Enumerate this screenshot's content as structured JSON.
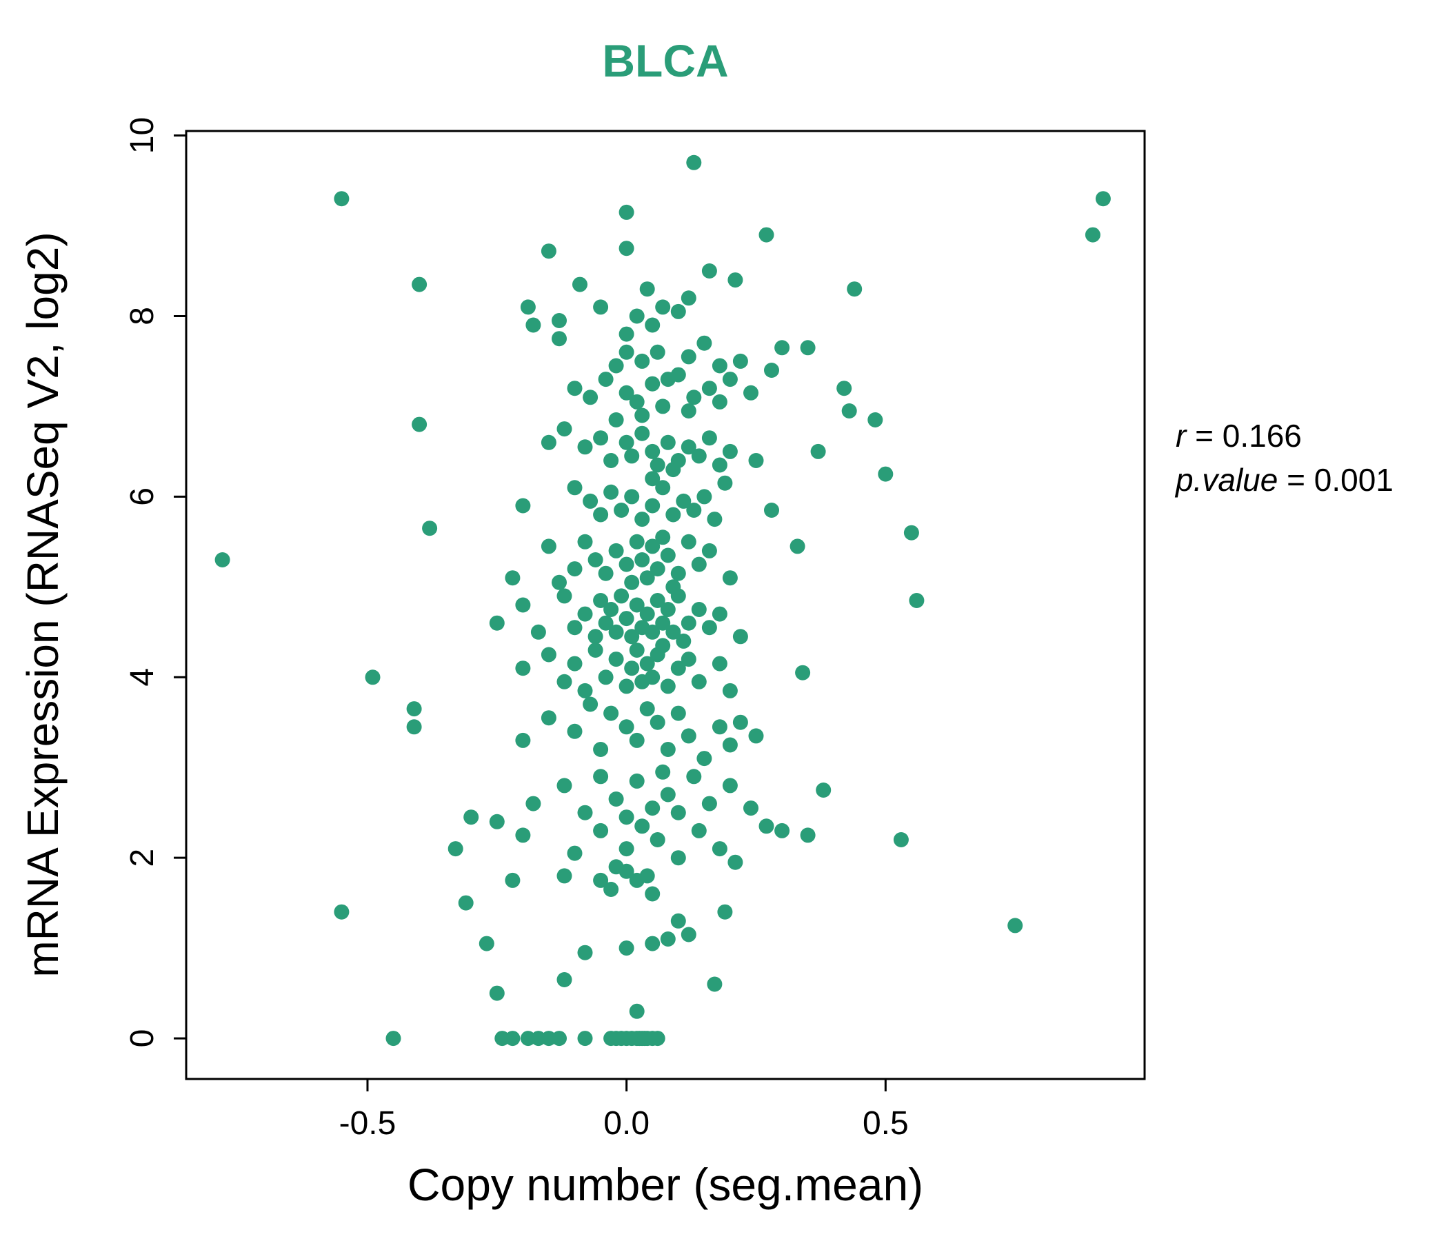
{
  "title": "BLCA",
  "title_color": "#2a9d78",
  "point_color": "#2a9d78",
  "axis_color": "#000000",
  "annotation": {
    "r_var": "r",
    "r_rest": " = 0.166",
    "p_var": "p.value",
    "p_rest": " = 0.001"
  },
  "chart_data": {
    "type": "scatter",
    "title": "BLCA",
    "xlabel": "Copy number (seg.mean)",
    "ylabel": "mRNA Expression (RNASeq V2, log2)",
    "xlim": [
      -0.85,
      1.0
    ],
    "ylim": [
      -0.45,
      10.05
    ],
    "xticks": [
      -0.5,
      0.0,
      0.5
    ],
    "xtick_labels": [
      "-0.5",
      "0.0",
      "0.5"
    ],
    "yticks": [
      0,
      2,
      4,
      6,
      8,
      10
    ],
    "ytick_labels": [
      "0",
      "2",
      "4",
      "6",
      "8",
      "10"
    ],
    "grid": false,
    "legend": "none",
    "r": 0.166,
    "p_value": 0.001,
    "points": [
      [
        0.13,
        9.7
      ],
      [
        -0.55,
        9.3
      ],
      [
        0.92,
        9.3
      ],
      [
        0.0,
        9.15
      ],
      [
        0.9,
        8.9
      ],
      [
        0.27,
        8.9
      ],
      [
        -0.15,
        8.72
      ],
      [
        0.0,
        8.75
      ],
      [
        0.16,
        8.5
      ],
      [
        0.21,
        8.4
      ],
      [
        -0.4,
        8.35
      ],
      [
        -0.09,
        8.35
      ],
      [
        0.44,
        8.3
      ],
      [
        0.04,
        8.3
      ],
      [
        -0.19,
        8.1
      ],
      [
        0.12,
        8.2
      ],
      [
        -0.05,
        8.1
      ],
      [
        0.02,
        8.0
      ],
      [
        0.1,
        8.05
      ],
      [
        -0.13,
        7.95
      ],
      [
        0.0,
        7.8
      ],
      [
        0.05,
        7.9
      ],
      [
        0.07,
        8.1
      ],
      [
        -0.18,
        7.9
      ],
      [
        -0.13,
        7.75
      ],
      [
        0.06,
        7.6
      ],
      [
        0.12,
        7.55
      ],
      [
        0.15,
        7.7
      ],
      [
        0.18,
        7.45
      ],
      [
        0.22,
        7.5
      ],
      [
        0.28,
        7.4
      ],
      [
        0.3,
        7.65
      ],
      [
        0.35,
        7.65
      ],
      [
        -0.02,
        7.45
      ],
      [
        0.08,
        7.3
      ],
      [
        0.0,
        7.6
      ],
      [
        0.03,
        7.5
      ],
      [
        -0.1,
        7.2
      ],
      [
        -0.07,
        7.1
      ],
      [
        -0.04,
        7.3
      ],
      [
        0.0,
        7.15
      ],
      [
        0.02,
        7.05
      ],
      [
        0.05,
        7.25
      ],
      [
        0.07,
        7.0
      ],
      [
        0.1,
        7.35
      ],
      [
        0.13,
        7.1
      ],
      [
        0.16,
        7.2
      ],
      [
        0.18,
        7.05
      ],
      [
        0.2,
        7.3
      ],
      [
        0.24,
        7.15
      ],
      [
        0.42,
        7.2
      ],
      [
        0.43,
        6.95
      ],
      [
        0.12,
        6.95
      ],
      [
        -0.4,
        6.8
      ],
      [
        -0.15,
        6.6
      ],
      [
        -0.12,
        6.75
      ],
      [
        -0.08,
        6.55
      ],
      [
        -0.05,
        6.65
      ],
      [
        -0.03,
        6.4
      ],
      [
        0.0,
        6.6
      ],
      [
        0.01,
        6.45
      ],
      [
        0.03,
        6.7
      ],
      [
        0.05,
        6.5
      ],
      [
        0.06,
        6.35
      ],
      [
        0.08,
        6.6
      ],
      [
        0.1,
        6.4
      ],
      [
        0.12,
        6.55
      ],
      [
        0.14,
        6.45
      ],
      [
        0.16,
        6.65
      ],
      [
        0.18,
        6.35
      ],
      [
        0.2,
        6.5
      ],
      [
        0.37,
        6.5
      ],
      [
        0.5,
        6.25
      ],
      [
        0.48,
        6.85
      ],
      [
        0.25,
        6.4
      ],
      [
        0.09,
        6.3
      ],
      [
        0.03,
        6.9
      ],
      [
        -0.02,
        6.85
      ],
      [
        -0.2,
        5.9
      ],
      [
        -0.1,
        6.1
      ],
      [
        -0.07,
        5.95
      ],
      [
        -0.05,
        5.8
      ],
      [
        -0.03,
        6.05
      ],
      [
        -0.01,
        5.85
      ],
      [
        0.01,
        6.0
      ],
      [
        0.03,
        5.75
      ],
      [
        0.05,
        5.9
      ],
      [
        0.07,
        6.1
      ],
      [
        0.09,
        5.8
      ],
      [
        0.11,
        5.95
      ],
      [
        0.13,
        5.85
      ],
      [
        0.15,
        6.0
      ],
      [
        0.17,
        5.75
      ],
      [
        0.28,
        5.85
      ],
      [
        0.19,
        6.15
      ],
      [
        0.05,
        6.2
      ],
      [
        -0.38,
        5.65
      ],
      [
        0.55,
        5.6
      ],
      [
        -0.78,
        5.3
      ],
      [
        -0.22,
        5.1
      ],
      [
        -0.15,
        5.45
      ],
      [
        -0.1,
        5.2
      ],
      [
        -0.08,
        5.5
      ],
      [
        -0.06,
        5.3
      ],
      [
        -0.04,
        5.15
      ],
      [
        -0.02,
        5.4
      ],
      [
        0.0,
        5.25
      ],
      [
        0.01,
        5.05
      ],
      [
        0.02,
        5.5
      ],
      [
        0.03,
        5.3
      ],
      [
        0.04,
        5.1
      ],
      [
        0.05,
        5.45
      ],
      [
        0.06,
        5.2
      ],
      [
        0.07,
        5.55
      ],
      [
        0.08,
        5.35
      ],
      [
        0.1,
        5.15
      ],
      [
        0.12,
        5.5
      ],
      [
        0.14,
        5.25
      ],
      [
        0.16,
        5.4
      ],
      [
        0.33,
        5.45
      ],
      [
        0.2,
        5.1
      ],
      [
        0.09,
        5.0
      ],
      [
        -0.13,
        5.05
      ],
      [
        -0.25,
        4.6
      ],
      [
        -0.2,
        4.8
      ],
      [
        -0.17,
        4.5
      ],
      [
        -0.12,
        4.9
      ],
      [
        -0.1,
        4.55
      ],
      [
        -0.08,
        4.7
      ],
      [
        -0.06,
        4.45
      ],
      [
        -0.05,
        4.85
      ],
      [
        -0.04,
        4.6
      ],
      [
        -0.03,
        4.75
      ],
      [
        -0.02,
        4.5
      ],
      [
        -0.01,
        4.9
      ],
      [
        0.0,
        4.65
      ],
      [
        0.01,
        4.45
      ],
      [
        0.02,
        4.8
      ],
      [
        0.03,
        4.55
      ],
      [
        0.04,
        4.7
      ],
      [
        0.05,
        4.5
      ],
      [
        0.06,
        4.85
      ],
      [
        0.07,
        4.6
      ],
      [
        0.08,
        4.75
      ],
      [
        0.09,
        4.5
      ],
      [
        0.1,
        4.9
      ],
      [
        0.12,
        4.6
      ],
      [
        0.14,
        4.75
      ],
      [
        0.16,
        4.55
      ],
      [
        0.18,
        4.7
      ],
      [
        0.56,
        4.85
      ],
      [
        0.22,
        4.45
      ],
      [
        0.11,
        4.4
      ],
      [
        -0.49,
        4.0
      ],
      [
        -0.2,
        4.1
      ],
      [
        -0.15,
        4.25
      ],
      [
        -0.12,
        3.95
      ],
      [
        -0.1,
        4.15
      ],
      [
        -0.08,
        3.85
      ],
      [
        -0.06,
        4.3
      ],
      [
        -0.04,
        4.0
      ],
      [
        -0.02,
        4.2
      ],
      [
        0.0,
        3.9
      ],
      [
        0.01,
        4.1
      ],
      [
        0.02,
        4.3
      ],
      [
        0.03,
        3.95
      ],
      [
        0.04,
        4.15
      ],
      [
        0.05,
        4.0
      ],
      [
        0.06,
        4.25
      ],
      [
        0.08,
        3.9
      ],
      [
        0.1,
        4.1
      ],
      [
        0.12,
        4.2
      ],
      [
        0.14,
        3.95
      ],
      [
        0.34,
        4.05
      ],
      [
        0.18,
        4.15
      ],
      [
        0.07,
        4.35
      ],
      [
        0.2,
        3.85
      ],
      [
        -0.41,
        3.65
      ],
      [
        -0.41,
        3.45
      ],
      [
        -0.2,
        3.3
      ],
      [
        -0.15,
        3.55
      ],
      [
        -0.1,
        3.4
      ],
      [
        -0.07,
        3.7
      ],
      [
        -0.05,
        3.2
      ],
      [
        -0.03,
        3.6
      ],
      [
        0.0,
        3.45
      ],
      [
        0.02,
        3.3
      ],
      [
        0.04,
        3.65
      ],
      [
        0.06,
        3.5
      ],
      [
        0.08,
        3.2
      ],
      [
        0.1,
        3.6
      ],
      [
        0.12,
        3.35
      ],
      [
        0.15,
        3.1
      ],
      [
        0.18,
        3.45
      ],
      [
        0.2,
        3.25
      ],
      [
        0.22,
        3.5
      ],
      [
        0.25,
        3.35
      ],
      [
        -0.3,
        2.45
      ],
      [
        -0.18,
        2.6
      ],
      [
        -0.12,
        2.8
      ],
      [
        -0.08,
        2.5
      ],
      [
        -0.05,
        2.9
      ],
      [
        -0.02,
        2.65
      ],
      [
        0.0,
        2.45
      ],
      [
        0.02,
        2.85
      ],
      [
        0.05,
        2.55
      ],
      [
        0.08,
        2.7
      ],
      [
        0.1,
        2.5
      ],
      [
        0.13,
        2.9
      ],
      [
        0.16,
        2.6
      ],
      [
        0.38,
        2.75
      ],
      [
        0.2,
        2.8
      ],
      [
        0.24,
        2.55
      ],
      [
        0.07,
        2.95
      ],
      [
        -0.25,
        2.4
      ],
      [
        -0.33,
        2.1
      ],
      [
        -0.2,
        2.25
      ],
      [
        -0.1,
        2.05
      ],
      [
        -0.05,
        2.3
      ],
      [
        0.0,
        2.1
      ],
      [
        0.03,
        2.35
      ],
      [
        0.06,
        2.2
      ],
      [
        0.1,
        2.0
      ],
      [
        0.14,
        2.3
      ],
      [
        0.18,
        2.1
      ],
      [
        0.27,
        2.35
      ],
      [
        0.3,
        2.3
      ],
      [
        0.35,
        2.25
      ],
      [
        0.53,
        2.2
      ],
      [
        0.21,
        1.95
      ],
      [
        -0.55,
        1.4
      ],
      [
        -0.31,
        1.5
      ],
      [
        -0.27,
        1.05
      ],
      [
        -0.22,
        1.75
      ],
      [
        -0.12,
        1.8
      ],
      [
        -0.05,
        1.75
      ],
      [
        -0.02,
        1.9
      ],
      [
        0.0,
        1.85
      ],
      [
        0.02,
        1.75
      ],
      [
        0.04,
        1.8
      ],
      [
        -0.03,
        1.65
      ],
      [
        0.05,
        1.6
      ],
      [
        0.1,
        1.3
      ],
      [
        0.08,
        1.1
      ],
      [
        0.12,
        1.15
      ],
      [
        0.19,
        1.4
      ],
      [
        0.75,
        1.25
      ],
      [
        0.05,
        1.05
      ],
      [
        0.0,
        1.0
      ],
      [
        -0.08,
        0.95
      ],
      [
        0.02,
        0.3
      ],
      [
        -0.25,
        0.5
      ],
      [
        0.17,
        0.6
      ],
      [
        -0.12,
        0.65
      ],
      [
        -0.45,
        0.0
      ],
      [
        -0.24,
        0.0
      ],
      [
        -0.22,
        0.0
      ],
      [
        -0.19,
        0.0
      ],
      [
        -0.17,
        0.0
      ],
      [
        -0.15,
        0.0
      ],
      [
        -0.13,
        0.0
      ],
      [
        -0.08,
        0.0
      ],
      [
        -0.03,
        0.0
      ],
      [
        -0.02,
        0.0
      ],
      [
        -0.01,
        0.0
      ],
      [
        0.0,
        0.0
      ],
      [
        0.01,
        0.0
      ],
      [
        0.02,
        0.0
      ],
      [
        0.03,
        0.0
      ],
      [
        0.04,
        0.0
      ],
      [
        0.05,
        0.0
      ],
      [
        0.06,
        0.0
      ],
      [
        0.025,
        0.0
      ],
      [
        0.035,
        0.0
      ]
    ]
  }
}
